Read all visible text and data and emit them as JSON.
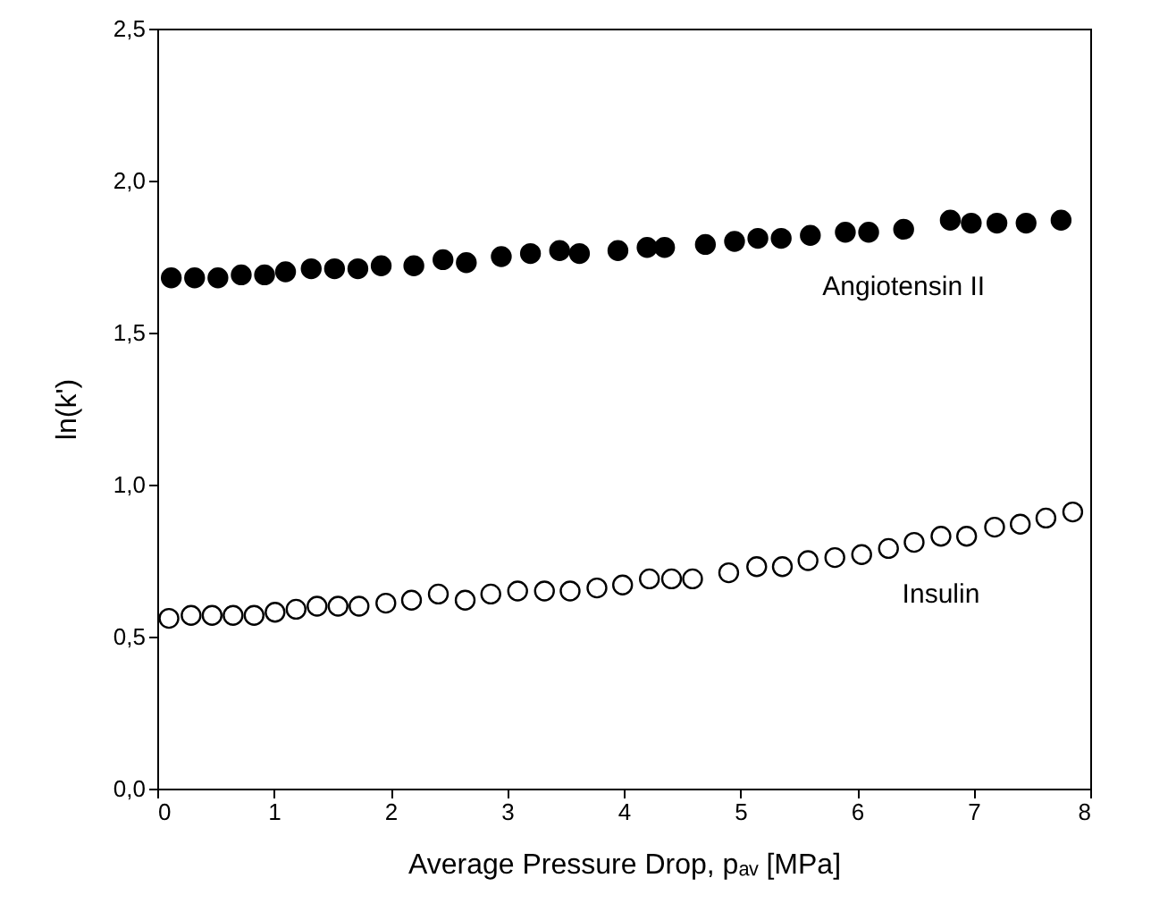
{
  "chart_data": {
    "type": "scatter",
    "xlabel": "Average Pressure Drop, pₐᵥ  [MPa]",
    "ylabel": "ln(k')",
    "xlim": [
      0,
      8
    ],
    "xticks": [
      0,
      1,
      2,
      3,
      4,
      5,
      6,
      7,
      8
    ],
    "ylim": [
      0,
      2.5
    ],
    "yticks": [
      {
        "value": 0,
        "label": "0,0"
      },
      {
        "value": 0.5,
        "label": "0,5"
      },
      {
        "value": 1,
        "label": "1,0"
      },
      {
        "value": 1.5,
        "label": "1,5"
      },
      {
        "value": 2,
        "label": "2,0"
      },
      {
        "value": 2.5,
        "label": "2,5"
      }
    ],
    "grid": false,
    "marker": "circle",
    "series": [
      {
        "name": "Angiotensin II",
        "color": "#000000",
        "x": [
          0.12,
          0.32,
          0.52,
          0.72,
          0.92,
          1.1,
          1.32,
          1.52,
          1.72,
          1.92,
          2.2,
          2.45,
          2.65,
          2.95,
          3.2,
          3.45,
          3.62,
          3.95,
          4.2,
          4.35,
          4.7,
          4.95,
          5.15,
          5.35,
          5.6,
          5.9,
          6.1,
          6.4,
          6.8,
          6.98,
          7.2,
          7.45,
          7.75
        ],
        "values": [
          1.68,
          1.68,
          1.68,
          1.69,
          1.69,
          1.7,
          1.71,
          1.71,
          1.71,
          1.72,
          1.72,
          1.74,
          1.73,
          1.75,
          1.76,
          1.77,
          1.76,
          1.77,
          1.78,
          1.78,
          1.79,
          1.8,
          1.81,
          1.81,
          1.82,
          1.83,
          1.83,
          1.84,
          1.87,
          1.86,
          1.86,
          1.86,
          1.87
        ]
      },
      {
        "name": "Insulin",
        "color": "#ffffff",
        "x": [
          0.1,
          0.29,
          0.47,
          0.65,
          0.83,
          1.01,
          1.19,
          1.37,
          1.55,
          1.73,
          1.96,
          2.18,
          2.41,
          2.64,
          2.86,
          3.09,
          3.32,
          3.54,
          3.77,
          3.99,
          4.22,
          4.41,
          4.59,
          4.9,
          5.14,
          5.36,
          5.58,
          5.81,
          6.04,
          6.27,
          6.49,
          6.72,
          6.94,
          7.18,
          7.4,
          7.62,
          7.85
        ],
        "values": [
          0.56,
          0.57,
          0.57,
          0.57,
          0.57,
          0.58,
          0.59,
          0.6,
          0.6,
          0.6,
          0.61,
          0.62,
          0.64,
          0.62,
          0.64,
          0.65,
          0.65,
          0.65,
          0.66,
          0.67,
          0.69,
          0.69,
          0.69,
          0.71,
          0.73,
          0.73,
          0.75,
          0.76,
          0.77,
          0.79,
          0.81,
          0.83,
          0.83,
          0.86,
          0.87,
          0.89,
          0.91
        ]
      }
    ]
  }
}
